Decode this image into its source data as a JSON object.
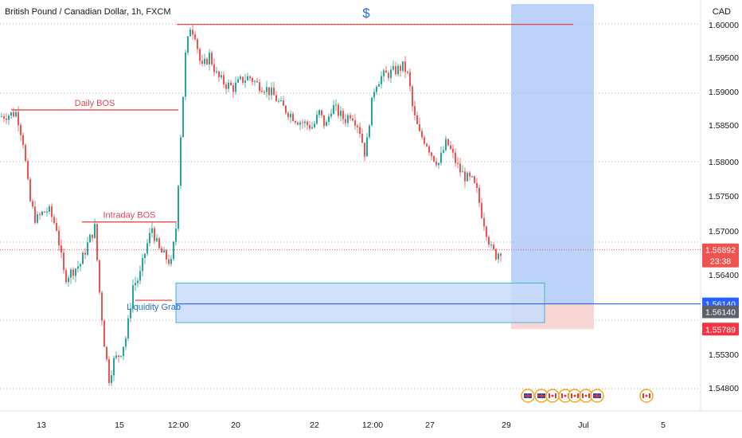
{
  "header": {
    "symbol_title": "British Pound / Canadian Dollar, 1h, FXCM",
    "currency": "CAD",
    "dollar_marker": "$"
  },
  "colors": {
    "bull": "#26a69a",
    "bear": "#ef5350",
    "level_line": "#e53935",
    "zone_fill": "#c9dcfb",
    "zone_border": "#3fb8c8",
    "target_fill": "#8fb4f5",
    "stop_fill": "#f8d2d2",
    "entry_line": "#2962ff",
    "text_red": "#d64a55",
    "text_blue": "#1e6fd9"
  },
  "chart_data": {
    "type": "candlestick",
    "title": "British Pound / Canadian Dollar, 1h, FXCM",
    "yaxis_unit": "CAD",
    "ylim": [
      1.5465,
      1.6037
    ],
    "y_ticks": [
      "1.60000",
      "1.59500",
      "1.59000",
      "1.58500",
      "1.58000",
      "1.57500",
      "1.57000",
      "1.56400",
      "1.55300",
      "1.54800"
    ],
    "x_ticks": [
      "13",
      "15",
      "12:00",
      "20",
      "22",
      "12:00",
      "27",
      "29",
      "Jul",
      "5"
    ],
    "price_path": [
      [
        0,
        1.5875
      ],
      [
        12,
        1.5878
      ],
      [
        20,
        1.588
      ],
      [
        28,
        1.584
      ],
      [
        36,
        1.576
      ],
      [
        44,
        1.573
      ],
      [
        52,
        1.574
      ],
      [
        60,
        1.5745
      ],
      [
        70,
        1.572
      ],
      [
        80,
        1.565
      ],
      [
        90,
        1.566
      ],
      [
        100,
        1.567
      ],
      [
        110,
        1.57
      ],
      [
        118,
        1.572
      ],
      [
        124,
        1.563
      ],
      [
        130,
        1.556
      ],
      [
        136,
        1.551
      ],
      [
        142,
        1.5535
      ],
      [
        150,
        1.5545
      ],
      [
        158,
        1.557
      ],
      [
        166,
        1.564
      ],
      [
        174,
        1.565
      ],
      [
        182,
        1.569
      ],
      [
        190,
        1.572
      ],
      [
        198,
        1.569
      ],
      [
        206,
        1.568
      ],
      [
        214,
        1.567
      ],
      [
        220,
        1.572
      ],
      [
        226,
        1.585
      ],
      [
        232,
        1.596
      ],
      [
        238,
        1.6
      ],
      [
        244,
        1.599
      ],
      [
        252,
        1.594
      ],
      [
        262,
        1.596
      ],
      [
        272,
        1.593
      ],
      [
        282,
        1.592
      ],
      [
        292,
        1.5915
      ],
      [
        302,
        1.5925
      ],
      [
        312,
        1.593
      ],
      [
        322,
        1.592
      ],
      [
        332,
        1.5915
      ],
      [
        342,
        1.5905
      ],
      [
        352,
        1.589
      ],
      [
        362,
        1.588
      ],
      [
        372,
        1.587
      ],
      [
        382,
        1.5865
      ],
      [
        392,
        1.586
      ],
      [
        400,
        1.588
      ],
      [
        408,
        1.586
      ],
      [
        416,
        1.589
      ],
      [
        424,
        1.588
      ],
      [
        432,
        1.587
      ],
      [
        440,
        1.588
      ],
      [
        450,
        1.586
      ],
      [
        458,
        1.582
      ],
      [
        464,
        1.588
      ],
      [
        470,
        1.592
      ],
      [
        478,
        1.593
      ],
      [
        488,
        1.5935
      ],
      [
        498,
        1.594
      ],
      [
        506,
        1.5945
      ],
      [
        512,
        1.593
      ],
      [
        518,
        1.588
      ],
      [
        526,
        1.585
      ],
      [
        534,
        1.584
      ],
      [
        542,
        1.582
      ],
      [
        550,
        1.581
      ],
      [
        560,
        1.584
      ],
      [
        568,
        1.582
      ],
      [
        576,
        1.58
      ],
      [
        584,
        1.579
      ],
      [
        592,
        1.5785
      ],
      [
        598,
        1.577
      ],
      [
        604,
        1.574
      ],
      [
        610,
        1.5715
      ],
      [
        616,
        1.569
      ],
      [
        622,
        1.5682
      ],
      [
        628,
        1.5689
      ]
    ],
    "levels": [
      {
        "label": "Daily BOS",
        "price": 1.5884
      },
      {
        "label": "Intraday BOS",
        "price": 1.5728
      },
      {
        "label": "Liquidity Grab",
        "price": 1.5619
      },
      {
        "label": "",
        "price": 1.6003
      }
    ],
    "demand_zone": {
      "top": 1.5643,
      "bottom": 1.5588
    },
    "position": {
      "entry": 1.5614,
      "stop": 1.55789,
      "target": 1.6037
    },
    "price_labels": [
      {
        "text": "1.56892",
        "sub": "23:38",
        "price": 1.56892,
        "bg": "#ef5350"
      },
      {
        "text": "1.56140",
        "price": 1.5614,
        "bg": "#2962ff"
      },
      {
        "text": "1.56140",
        "price": 1.5603,
        "bg": "#5d606b"
      },
      {
        "text": "1.55789",
        "price": 1.55789,
        "bg": "#f23645"
      }
    ],
    "grid": true
  }
}
